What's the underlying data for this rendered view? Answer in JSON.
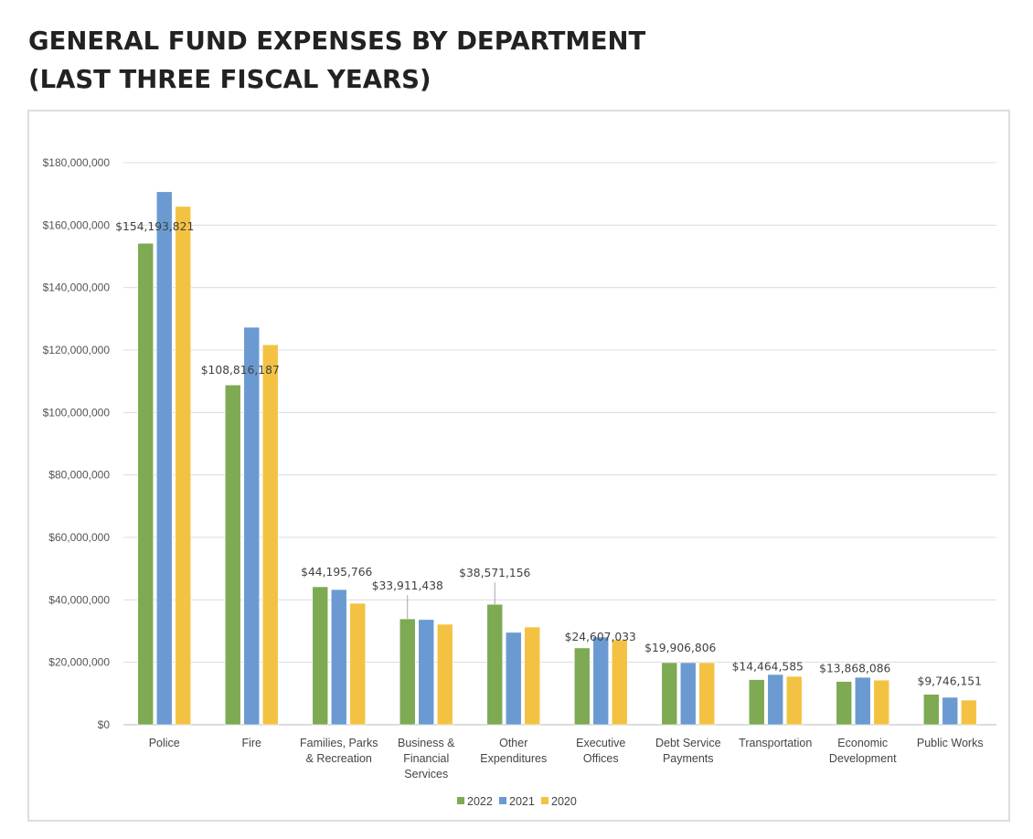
{
  "page": {
    "title_line1": "GENERAL FUND EXPENSES BY DEPARTMENT",
    "title_line2": "(LAST THREE FISCAL YEARS)"
  },
  "chart_data": {
    "type": "bar",
    "title": "General Fund Expenses by Department (Last Three Fiscal Years)",
    "xlabel": "",
    "ylabel": "",
    "ylim": [
      0,
      180000000
    ],
    "yticks": [
      0,
      20000000,
      40000000,
      60000000,
      80000000,
      100000000,
      120000000,
      140000000,
      160000000,
      180000000
    ],
    "ytick_labels": [
      "$0",
      "$20,000,000",
      "$40,000,000",
      "$60,000,000",
      "$80,000,000",
      "$100,000,000",
      "$120,000,000",
      "$140,000,000",
      "$160,000,000",
      "$180,000,000"
    ],
    "grid": true,
    "legend_position": "bottom",
    "categories": [
      [
        "Police"
      ],
      [
        "Fire"
      ],
      [
        "Families, Parks",
        "& Recreation"
      ],
      [
        "Business &",
        "Financial",
        "Services"
      ],
      [
        "Other",
        "Expenditures"
      ],
      [
        "Executive",
        "Offices"
      ],
      [
        "Debt Service",
        "Payments"
      ],
      [
        "Transportation"
      ],
      [
        "Economic",
        "Development"
      ],
      [
        "Public Works"
      ]
    ],
    "series": [
      {
        "name": "2022",
        "color": "#7DAA52",
        "values": [
          154193821,
          108816187,
          44195766,
          33911438,
          38571156,
          24607033,
          19906806,
          14464585,
          13868086,
          9746151
        ],
        "data_labels": [
          "$154,193,821",
          "$108,816,187",
          "$44,195,766",
          "$33,911,438",
          "$38,571,156",
          "$24,607,033",
          "$19,906,806",
          "$14,464,585",
          "$13,868,086",
          "$9,746,151"
        ]
      },
      {
        "name": "2021",
        "color": "#6A9AD1",
        "values": [
          170700000,
          127300000,
          43300000,
          33700000,
          29600000,
          28100000,
          19900000,
          16100000,
          15200000,
          8800000
        ]
      },
      {
        "name": "2020",
        "color": "#F4C242",
        "values": [
          166000000,
          121700000,
          38900000,
          32200000,
          31300000,
          27200000,
          19900000,
          15500000,
          14300000,
          7900000
        ]
      }
    ]
  }
}
